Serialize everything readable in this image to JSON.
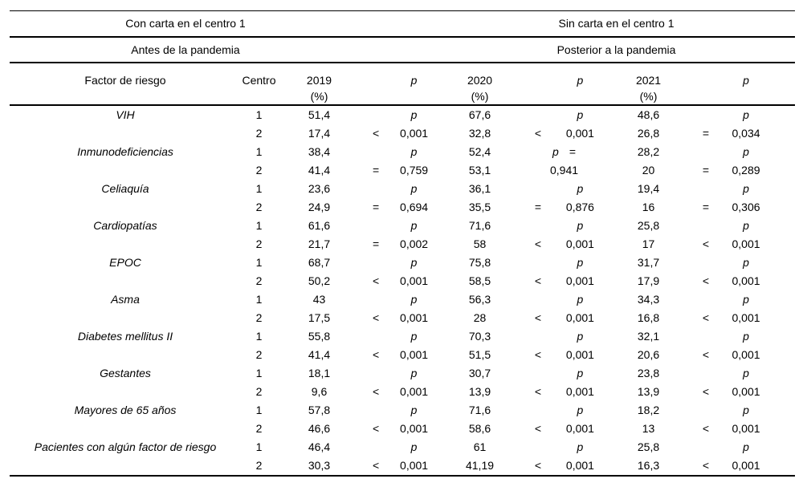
{
  "title_rows": {
    "left_top": "Con carta en el centro 1",
    "right_top": "Sin carta en el centro 1",
    "left_sub": "Antes de la pandemia",
    "right_sub": "Posterior a la pandemia"
  },
  "column_headers": {
    "factor": "Factor de riesgo",
    "centro": "Centro",
    "years": [
      "2019",
      "2020",
      "2021"
    ],
    "pct": "(%)",
    "p_label": "p"
  },
  "colors": {
    "background": "#ffffff",
    "text": "#000000",
    "rule": "#000000"
  },
  "rows": [
    {
      "factor": "VIH",
      "entries": [
        {
          "centro": "1",
          "values": [
            "51,4",
            "67,6",
            "48,6"
          ],
          "p": [
            {
              "val": "p",
              "italic": true
            },
            {
              "val": "p",
              "italic": true
            },
            {
              "val": "p",
              "italic": true
            }
          ]
        },
        {
          "centro": "2",
          "values": [
            "17,4",
            "32,8",
            "26,8"
          ],
          "p": [
            {
              "op": "<",
              "val": "0,001"
            },
            {
              "op": "<",
              "val": "0,001"
            },
            {
              "op": "=",
              "val": "0,034"
            }
          ]
        }
      ]
    },
    {
      "factor": "Inmunodeficiencias",
      "entries": [
        {
          "centro": "1",
          "values": [
            "38,4",
            "52,4",
            "28,2"
          ],
          "p": [
            {
              "val": "p",
              "italic": true
            },
            {
              "val": "p",
              "italic": true,
              "after": "="
            },
            {
              "val": "p",
              "italic": true
            }
          ]
        },
        {
          "centro": "2",
          "values": [
            "41,4",
            "53,1",
            "20"
          ],
          "p": [
            {
              "op": "=",
              "val": "0,759"
            },
            {
              "val": "0,941",
              "full": true
            },
            {
              "op": "=",
              "val": "0,289"
            }
          ]
        }
      ]
    },
    {
      "factor": "Celiaquía",
      "entries": [
        {
          "centro": "1",
          "values": [
            "23,6",
            "36,1",
            "19,4"
          ],
          "p": [
            {
              "val": "p",
              "italic": true
            },
            {
              "val": "p",
              "italic": true
            },
            {
              "val": "p",
              "italic": true
            }
          ]
        },
        {
          "centro": "2",
          "values": [
            "24,9",
            "35,5",
            "16"
          ],
          "p": [
            {
              "op": "=",
              "val": "0,694"
            },
            {
              "op": "=",
              "val": "0,876"
            },
            {
              "op": "=",
              "val": "0,306"
            }
          ]
        }
      ]
    },
    {
      "factor": "Cardiopatías",
      "entries": [
        {
          "centro": "1",
          "values": [
            "61,6",
            "71,6",
            "25,8"
          ],
          "p": [
            {
              "val": "p",
              "italic": true
            },
            {
              "val": "p",
              "italic": true
            },
            {
              "val": "p",
              "italic": true
            }
          ]
        },
        {
          "centro": "2",
          "values": [
            "21,7",
            "58",
            "17"
          ],
          "p": [
            {
              "op": "=",
              "val": "0,002"
            },
            {
              "op": "<",
              "val": "0,001"
            },
            {
              "op": "<",
              "val": "0,001"
            }
          ]
        }
      ]
    },
    {
      "factor": "EPOC",
      "entries": [
        {
          "centro": "1",
          "values": [
            "68,7",
            "75,8",
            "31,7"
          ],
          "p": [
            {
              "val": "p",
              "italic": true
            },
            {
              "val": "p",
              "italic": true
            },
            {
              "val": "p",
              "italic": true
            }
          ]
        },
        {
          "centro": "2",
          "values": [
            "50,2",
            "58,5",
            "17,9"
          ],
          "p": [
            {
              "op": "<",
              "val": "0,001"
            },
            {
              "op": "<",
              "val": "0,001"
            },
            {
              "op": "<",
              "val": "0,001"
            }
          ]
        }
      ]
    },
    {
      "factor": "Asma",
      "entries": [
        {
          "centro": "1",
          "values": [
            "43",
            "56,3",
            "34,3"
          ],
          "p": [
            {
              "val": "p",
              "italic": true
            },
            {
              "val": "p",
              "italic": true
            },
            {
              "val": "p",
              "italic": true
            }
          ]
        },
        {
          "centro": "2",
          "values": [
            "17,5",
            "28",
            "16,8"
          ],
          "p": [
            {
              "op": "<",
              "val": "0,001"
            },
            {
              "op": "<",
              "val": "0,001"
            },
            {
              "op": "<",
              "val": "0,001"
            }
          ]
        }
      ]
    },
    {
      "factor": "Diabetes mellitus II",
      "entries": [
        {
          "centro": "1",
          "values": [
            "55,8",
            "70,3",
            "32,1"
          ],
          "p": [
            {
              "val": "p",
              "italic": true
            },
            {
              "val": "p",
              "italic": true
            },
            {
              "val": "p",
              "italic": true
            }
          ]
        },
        {
          "centro": "2",
          "values": [
            "41,4",
            "51,5",
            "20,6"
          ],
          "p": [
            {
              "op": "<",
              "val": "0,001"
            },
            {
              "op": "<",
              "val": "0,001"
            },
            {
              "op": "<",
              "val": "0,001"
            }
          ]
        }
      ]
    },
    {
      "factor": "Gestantes",
      "entries": [
        {
          "centro": "1",
          "values": [
            "18,1",
            "30,7",
            "23,8"
          ],
          "p": [
            {
              "val": "p",
              "italic": true
            },
            {
              "val": "p",
              "italic": true
            },
            {
              "val": "p",
              "italic": true
            }
          ]
        },
        {
          "centro": "2",
          "values": [
            "9,6",
            "13,9",
            "13,9"
          ],
          "p": [
            {
              "op": "<",
              "val": "0,001"
            },
            {
              "op": "<",
              "val": "0,001"
            },
            {
              "op": "<",
              "val": "0,001"
            }
          ]
        }
      ]
    },
    {
      "factor": "Mayores de 65 años",
      "entries": [
        {
          "centro": "1",
          "values": [
            "57,8",
            "71,6",
            "18,2"
          ],
          "p": [
            {
              "val": "p",
              "italic": true
            },
            {
              "val": "p",
              "italic": true
            },
            {
              "val": "p",
              "italic": true
            }
          ]
        },
        {
          "centro": "2",
          "values": [
            "46,6",
            "58,6",
            "13"
          ],
          "p": [
            {
              "op": "<",
              "val": "0,001"
            },
            {
              "op": "<",
              "val": "0,001"
            },
            {
              "op": "<",
              "val": "0,001"
            }
          ]
        }
      ]
    },
    {
      "factor": "Pacientes con algún factor de riesgo",
      "entries": [
        {
          "centro": "1",
          "values": [
            "46,4",
            "61",
            "25,8"
          ],
          "p": [
            {
              "val": "p",
              "italic": true
            },
            {
              "val": "p",
              "italic": true
            },
            {
              "val": "p",
              "italic": true
            }
          ]
        },
        {
          "centro": "2",
          "values": [
            "30,3",
            "41,19",
            "16,3"
          ],
          "p": [
            {
              "op": "<",
              "val": "0,001"
            },
            {
              "op": "<",
              "val": "0,001"
            },
            {
              "op": "<",
              "val": "0,001"
            }
          ]
        }
      ]
    }
  ]
}
